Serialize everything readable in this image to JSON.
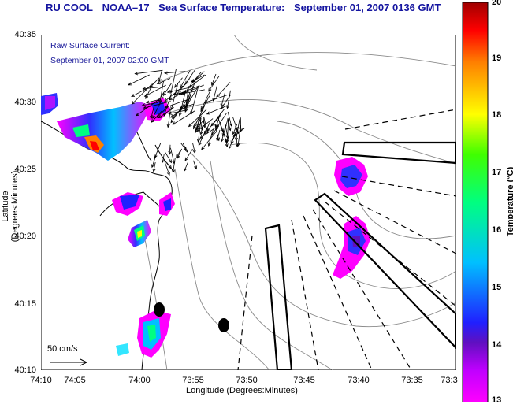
{
  "title": {
    "source": "RU COOL",
    "satellite": "NOAA–17",
    "product": "Sea Surface Temperature:",
    "datetime": "September 01, 2007 0136 GMT"
  },
  "current_note": {
    "line1": "Raw Surface Current:",
    "line2": "September 01, 2007 02:00 GMT"
  },
  "scale_vector": {
    "label": "50 cm/s"
  },
  "axes": {
    "x_title": "Longitude (Degrees:Minutes)",
    "y_title": "Latitude (Degrees:Minutes)",
    "x_ticks": [
      "74:10",
      "74:05",
      "74:00",
      "73:55",
      "73:50",
      "73:45",
      "73:40",
      "73:35",
      "73:3"
    ],
    "y_ticks": [
      "40:35",
      "40:30",
      "40:25",
      "40:20",
      "40:15",
      "40:10"
    ]
  },
  "colorbar": {
    "title": "Temperature (°C)",
    "ticks": [
      "20",
      "19",
      "18",
      "17",
      "16",
      "15",
      "14",
      "13"
    ],
    "colors": [
      "#ff00ff",
      "#2020ff",
      "#00e0ff",
      "#00ff80",
      "#ffff00",
      "#ff8000",
      "#ff0000",
      "#a00000"
    ]
  }
}
